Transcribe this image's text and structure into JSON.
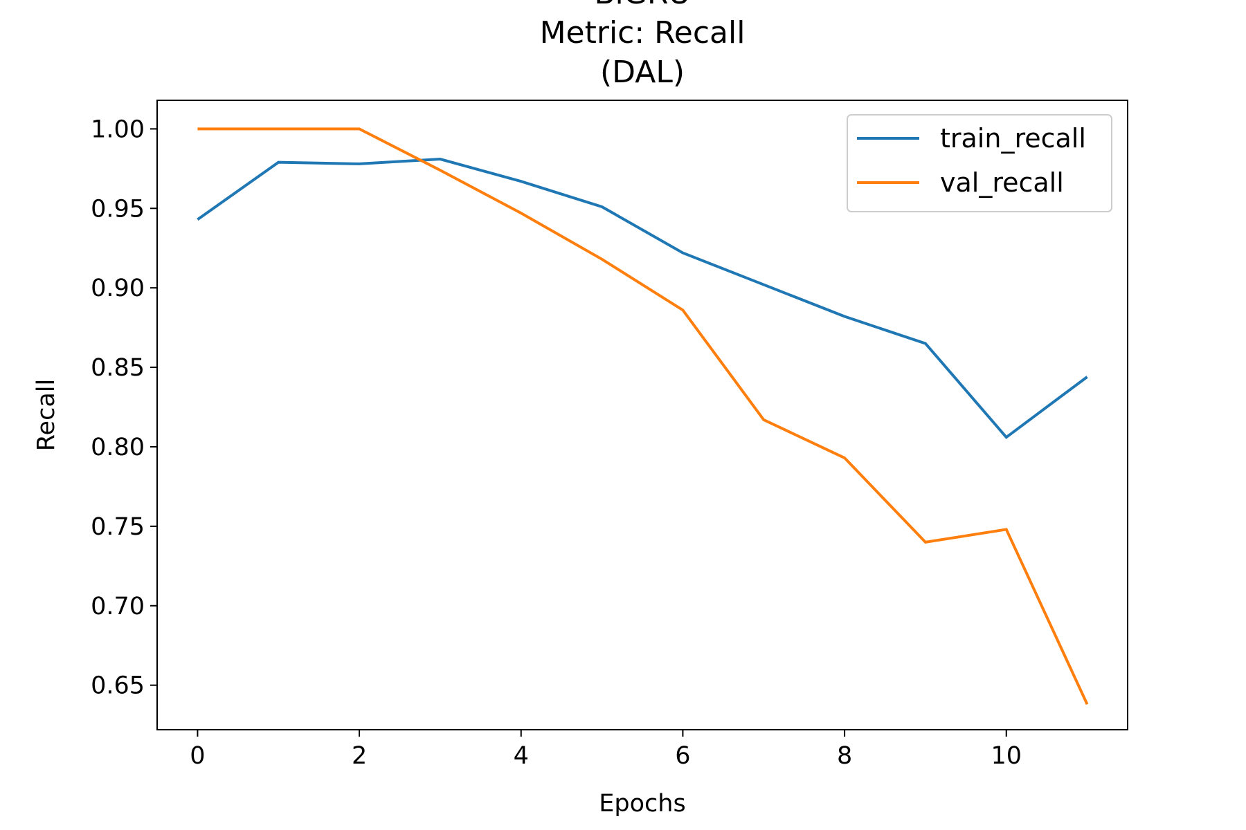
{
  "chart_data": {
    "type": "line",
    "title_lines": [
      "BiGRU",
      "Metric: Recall",
      "(DAL)"
    ],
    "xlabel": "Epochs",
    "ylabel": "Recall",
    "xlim": [
      -0.5,
      11.5
    ],
    "ylim": [
      0.622,
      1.018
    ],
    "xticks": [
      0,
      2,
      4,
      6,
      8,
      10
    ],
    "xtick_labels": [
      "0",
      "2",
      "4",
      "6",
      "8",
      "10"
    ],
    "yticks": [
      0.65,
      0.7,
      0.75,
      0.8,
      0.85,
      0.9,
      0.95,
      1.0
    ],
    "ytick_labels": [
      "0.65",
      "0.70",
      "0.75",
      "0.80",
      "0.85",
      "0.90",
      "0.95",
      "1.00"
    ],
    "x": [
      0,
      1,
      2,
      3,
      4,
      5,
      6,
      7,
      8,
      9,
      10,
      11
    ],
    "series": [
      {
        "name": "train_recall",
        "color": "#1f77b4",
        "values": [
          0.943,
          0.979,
          0.978,
          0.981,
          0.967,
          0.951,
          0.922,
          0.902,
          0.882,
          0.865,
          0.806,
          0.844
        ]
      },
      {
        "name": "val_recall",
        "color": "#ff7f0e",
        "values": [
          1.0,
          1.0,
          1.0,
          0.974,
          0.947,
          0.918,
          0.886,
          0.817,
          0.793,
          0.74,
          0.748,
          0.638
        ]
      }
    ],
    "legend_position": "top-right",
    "grid": false
  }
}
